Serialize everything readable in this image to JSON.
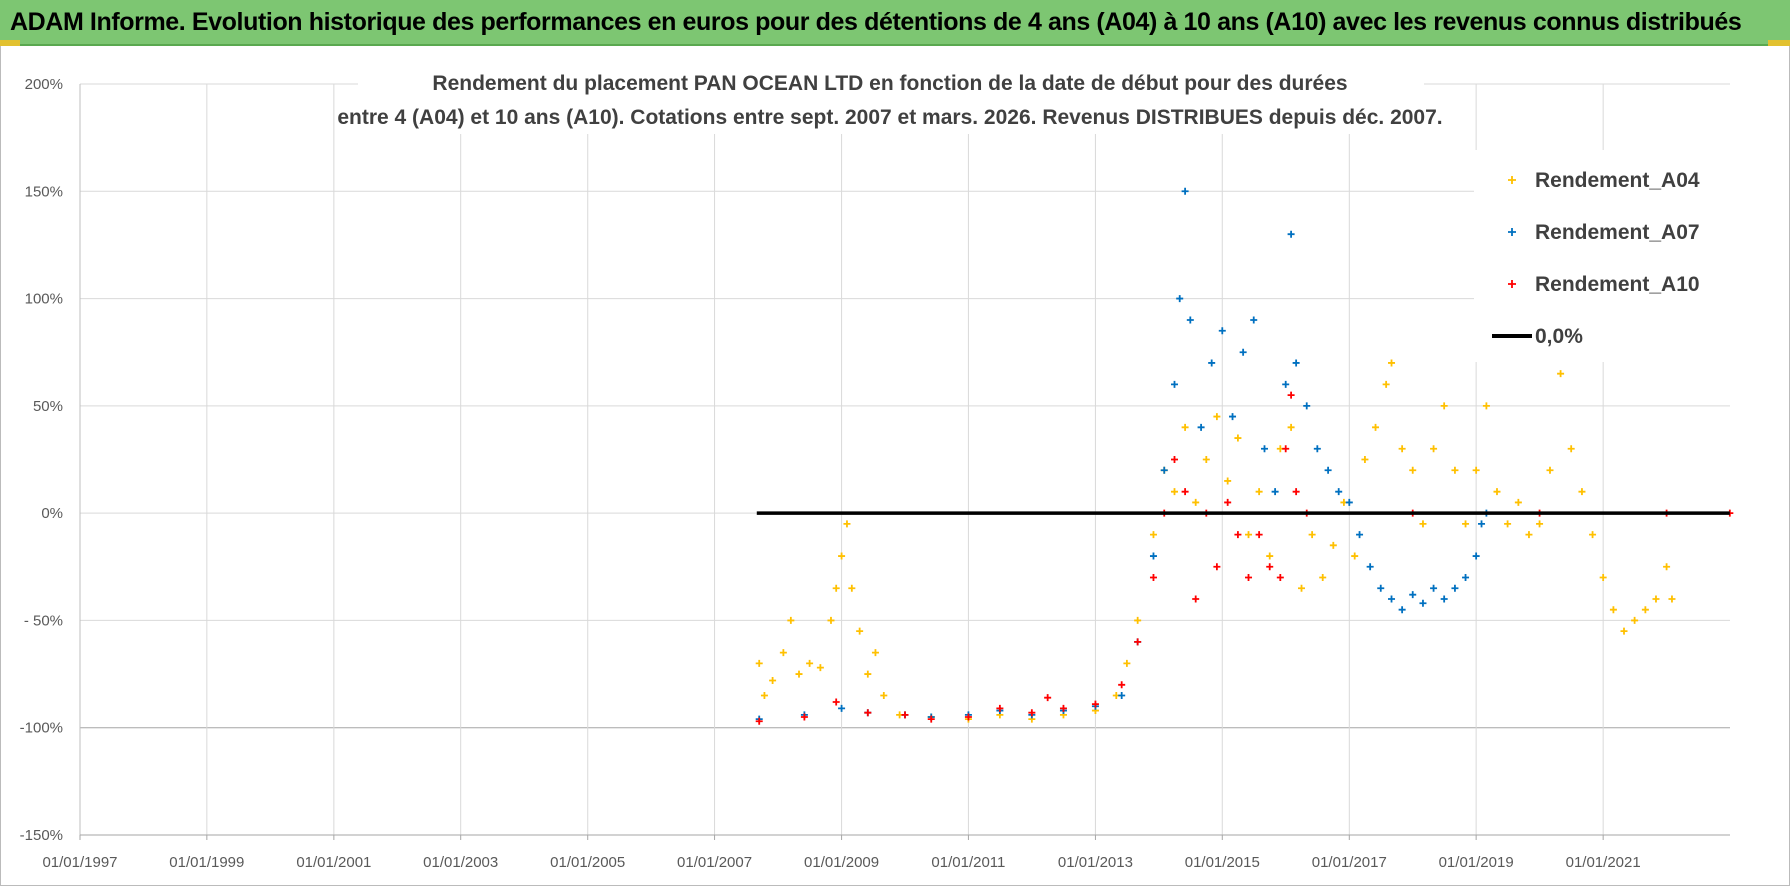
{
  "header": {
    "title": "ADAM Informe. Evolution historique des performances en euros pour des détentions de 4 ans (A04) à 10 ans (A10) avec les revenus connus distribués"
  },
  "colors": {
    "header_bg": "#7dc672",
    "A04": "#ffc000",
    "A07": "#0070c0",
    "A10": "#ff0000",
    "zero_line": "#000000",
    "grid": "#d9d9d9"
  },
  "chart_data": {
    "type": "scatter",
    "title_line1": "Rendement du placement PAN OCEAN LTD en fonction de la date de début pour des durées",
    "title_line2": "entre 4 (A04) et 10 ans (A10).  Cotations entre sept. 2007 et mars. 2026. Revenus DISTRIBUES  depuis déc. 2007.",
    "x_tick_labels": [
      "01/01/1997",
      "01/01/1999",
      "01/01/2001",
      "01/01/2003",
      "01/01/2005",
      "01/01/2007",
      "01/01/2009",
      "01/01/2011",
      "01/01/2013",
      "01/01/2015",
      "01/01/2017",
      "01/01/2019",
      "01/01/2021"
    ],
    "x_range": [
      "1997-01-01",
      "2023-01-01"
    ],
    "y_tick_labels": [
      "200%",
      "150%",
      "100%",
      "50%",
      "0%",
      "- 50%",
      "-100%",
      "-150%"
    ],
    "ylim": [
      -150,
      200
    ],
    "grid": true,
    "legend_position": "top-right",
    "series": [
      {
        "name": "Rendement_A04",
        "marker": "+",
        "points": [
          [
            "2007-09-15",
            -70
          ],
          [
            "2007-10-15",
            -85
          ],
          [
            "2007-12-01",
            -78
          ],
          [
            "2008-02-01",
            -65
          ],
          [
            "2008-03-15",
            -50
          ],
          [
            "2008-05-01",
            -75
          ],
          [
            "2008-07-01",
            -70
          ],
          [
            "2008-09-01",
            -72
          ],
          [
            "2008-11-01",
            -50
          ],
          [
            "2008-12-01",
            -35
          ],
          [
            "2009-01-01",
            -20
          ],
          [
            "2009-02-01",
            -5
          ],
          [
            "2009-03-01",
            -35
          ],
          [
            "2009-04-15",
            -55
          ],
          [
            "2009-06-01",
            -75
          ],
          [
            "2009-07-15",
            -65
          ],
          [
            "2009-09-01",
            -85
          ],
          [
            "2009-12-01",
            -94
          ],
          [
            "2010-06-01",
            -95
          ],
          [
            "2011-01-01",
            -96
          ],
          [
            "2011-07-01",
            -94
          ],
          [
            "2012-01-01",
            -96
          ],
          [
            "2012-07-01",
            -94
          ],
          [
            "2013-01-01",
            -92
          ],
          [
            "2013-05-01",
            -85
          ],
          [
            "2013-07-01",
            -70
          ],
          [
            "2013-09-01",
            -50
          ],
          [
            "2013-12-01",
            -10
          ],
          [
            "2014-02-01",
            20
          ],
          [
            "2014-04-01",
            10
          ],
          [
            "2014-06-01",
            40
          ],
          [
            "2014-08-01",
            5
          ],
          [
            "2014-10-01",
            25
          ],
          [
            "2014-12-01",
            45
          ],
          [
            "2015-02-01",
            15
          ],
          [
            "2015-04-01",
            35
          ],
          [
            "2015-06-01",
            -10
          ],
          [
            "2015-08-01",
            10
          ],
          [
            "2015-10-01",
            -20
          ],
          [
            "2015-12-01",
            30
          ],
          [
            "2016-02-01",
            40
          ],
          [
            "2016-04-01",
            -35
          ],
          [
            "2016-06-01",
            -10
          ],
          [
            "2016-08-01",
            -30
          ],
          [
            "2016-10-01",
            -15
          ],
          [
            "2016-12-01",
            5
          ],
          [
            "2017-02-01",
            -20
          ],
          [
            "2017-04-01",
            25
          ],
          [
            "2017-06-01",
            40
          ],
          [
            "2017-08-01",
            60
          ],
          [
            "2017-09-01",
            70
          ],
          [
            "2017-11-01",
            30
          ],
          [
            "2018-01-01",
            20
          ],
          [
            "2018-03-01",
            -5
          ],
          [
            "2018-05-01",
            30
          ],
          [
            "2018-07-01",
            50
          ],
          [
            "2018-09-01",
            20
          ],
          [
            "2018-11-01",
            -5
          ],
          [
            "2019-01-01",
            20
          ],
          [
            "2019-03-01",
            50
          ],
          [
            "2019-05-01",
            10
          ],
          [
            "2019-07-01",
            -5
          ],
          [
            "2019-09-01",
            5
          ],
          [
            "2019-11-01",
            -10
          ],
          [
            "2020-01-01",
            -5
          ],
          [
            "2020-03-01",
            20
          ],
          [
            "2020-05-01",
            65
          ],
          [
            "2020-07-01",
            30
          ],
          [
            "2020-09-01",
            10
          ],
          [
            "2020-11-01",
            -10
          ],
          [
            "2021-01-01",
            -30
          ],
          [
            "2021-03-01",
            -45
          ],
          [
            "2021-05-01",
            -55
          ],
          [
            "2021-07-01",
            -50
          ],
          [
            "2021-09-01",
            -45
          ],
          [
            "2021-11-01",
            -40
          ],
          [
            "2022-01-01",
            -25
          ],
          [
            "2022-02-01",
            -40
          ]
        ]
      },
      {
        "name": "Rendement_A07",
        "marker": "+",
        "points": [
          [
            "2007-09-15",
            -96
          ],
          [
            "2008-06-01",
            -94
          ],
          [
            "2009-01-01",
            -91
          ],
          [
            "2009-06-01",
            -93
          ],
          [
            "2010-01-01",
            -94
          ],
          [
            "2010-06-01",
            -95
          ],
          [
            "2011-01-01",
            -94
          ],
          [
            "2011-07-01",
            -92
          ],
          [
            "2012-01-01",
            -94
          ],
          [
            "2012-07-01",
            -92
          ],
          [
            "2013-01-01",
            -90
          ],
          [
            "2013-06-01",
            -85
          ],
          [
            "2013-09-01",
            -60
          ],
          [
            "2013-12-01",
            -20
          ],
          [
            "2014-02-01",
            20
          ],
          [
            "2014-04-01",
            60
          ],
          [
            "2014-05-01",
            100
          ],
          [
            "2014-06-01",
            150
          ],
          [
            "2014-07-01",
            90
          ],
          [
            "2014-09-01",
            40
          ],
          [
            "2014-11-01",
            70
          ],
          [
            "2015-01-01",
            85
          ],
          [
            "2015-03-01",
            45
          ],
          [
            "2015-05-01",
            75
          ],
          [
            "2015-07-01",
            90
          ],
          [
            "2015-09-01",
            30
          ],
          [
            "2015-11-01",
            10
          ],
          [
            "2016-01-01",
            60
          ],
          [
            "2016-02-01",
            130
          ],
          [
            "2016-03-01",
            70
          ],
          [
            "2016-05-01",
            50
          ],
          [
            "2016-07-01",
            30
          ],
          [
            "2016-09-01",
            20
          ],
          [
            "2016-11-01",
            10
          ],
          [
            "2017-01-01",
            5
          ],
          [
            "2017-03-01",
            -10
          ],
          [
            "2017-05-01",
            -25
          ],
          [
            "2017-07-01",
            -35
          ],
          [
            "2017-09-01",
            -40
          ],
          [
            "2017-11-01",
            -45
          ],
          [
            "2018-01-01",
            -38
          ],
          [
            "2018-03-01",
            -42
          ],
          [
            "2018-05-01",
            -35
          ],
          [
            "2018-07-01",
            -40
          ],
          [
            "2018-09-01",
            -35
          ],
          [
            "2018-11-01",
            -30
          ],
          [
            "2019-01-01",
            -20
          ],
          [
            "2019-02-01",
            -5
          ],
          [
            "2019-03-01",
            0
          ]
        ]
      },
      {
        "name": "Rendement_A10",
        "marker": "+",
        "points": [
          [
            "2007-09-15",
            -97
          ],
          [
            "2008-06-01",
            -95
          ],
          [
            "2008-12-01",
            -88
          ],
          [
            "2009-06-01",
            -93
          ],
          [
            "2010-01-01",
            -94
          ],
          [
            "2010-06-01",
            -96
          ],
          [
            "2011-01-01",
            -95
          ],
          [
            "2011-07-01",
            -91
          ],
          [
            "2012-01-01",
            -93
          ],
          [
            "2012-04-01",
            -86
          ],
          [
            "2012-07-01",
            -91
          ],
          [
            "2013-01-01",
            -89
          ],
          [
            "2013-06-01",
            -80
          ],
          [
            "2013-09-01",
            -60
          ],
          [
            "2013-12-01",
            -30
          ],
          [
            "2014-02-01",
            0
          ],
          [
            "2014-04-01",
            25
          ],
          [
            "2014-06-01",
            10
          ],
          [
            "2014-08-01",
            -40
          ],
          [
            "2014-10-01",
            0
          ],
          [
            "2014-12-01",
            -25
          ],
          [
            "2015-02-01",
            5
          ],
          [
            "2015-04-01",
            -10
          ],
          [
            "2015-06-01",
            -30
          ],
          [
            "2015-08-01",
            -10
          ],
          [
            "2015-10-01",
            -25
          ],
          [
            "2015-12-01",
            -30
          ],
          [
            "2016-01-01",
            30
          ],
          [
            "2016-02-01",
            55
          ],
          [
            "2016-03-01",
            10
          ],
          [
            "2016-05-01",
            0
          ],
          [
            "2018-01-01",
            0
          ],
          [
            "2020-01-01",
            0
          ],
          [
            "2022-01-01",
            0
          ],
          [
            "2022-12-31",
            0
          ]
        ]
      }
    ],
    "reference_line": {
      "name": "0,0%",
      "from": "2007-09-01",
      "to": "2022-12-31",
      "y": 0
    }
  }
}
